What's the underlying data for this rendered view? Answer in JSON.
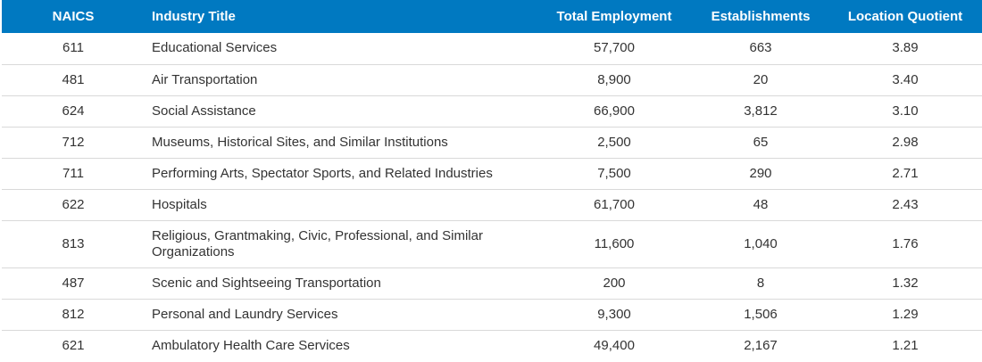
{
  "table": {
    "headers": {
      "naics": "NAICS",
      "title": "Industry Title",
      "employment": "Total Employment",
      "establishments": "Establishments",
      "lq": "Location Quotient"
    },
    "rows": [
      {
        "naics": "611",
        "title": "Educational Services",
        "employment": "57,700",
        "establishments": "663",
        "lq": "3.89"
      },
      {
        "naics": "481",
        "title": "Air Transportation",
        "employment": "8,900",
        "establishments": "20",
        "lq": "3.40"
      },
      {
        "naics": "624",
        "title": "Social Assistance",
        "employment": "66,900",
        "establishments": "3,812",
        "lq": "3.10"
      },
      {
        "naics": "712",
        "title": "Museums, Historical Sites, and Similar Institutions",
        "employment": "2,500",
        "establishments": "65",
        "lq": "2.98"
      },
      {
        "naics": "711",
        "title": "Performing Arts, Spectator Sports, and Related Industries",
        "employment": "7,500",
        "establishments": "290",
        "lq": "2.71"
      },
      {
        "naics": "622",
        "title": "Hospitals",
        "employment": "61,700",
        "establishments": "48",
        "lq": "2.43"
      },
      {
        "naics": "813",
        "title": "Religious, Grantmaking, Civic, Professional, and Similar Organizations",
        "employment": "11,600",
        "establishments": "1,040",
        "lq": "1.76"
      },
      {
        "naics": "487",
        "title": "Scenic and Sightseeing Transportation",
        "employment": "200",
        "establishments": "8",
        "lq": "1.32"
      },
      {
        "naics": "812",
        "title": "Personal and Laundry Services",
        "employment": "9,300",
        "establishments": "1,506",
        "lq": "1.29"
      },
      {
        "naics": "621",
        "title": "Ambulatory Health Care Services",
        "employment": "49,400",
        "establishments": "2,167",
        "lq": "1.21"
      }
    ]
  },
  "colors": {
    "header_bg": "#0079c1",
    "header_text": "#ffffff",
    "row_border": "#d9d9d9"
  }
}
